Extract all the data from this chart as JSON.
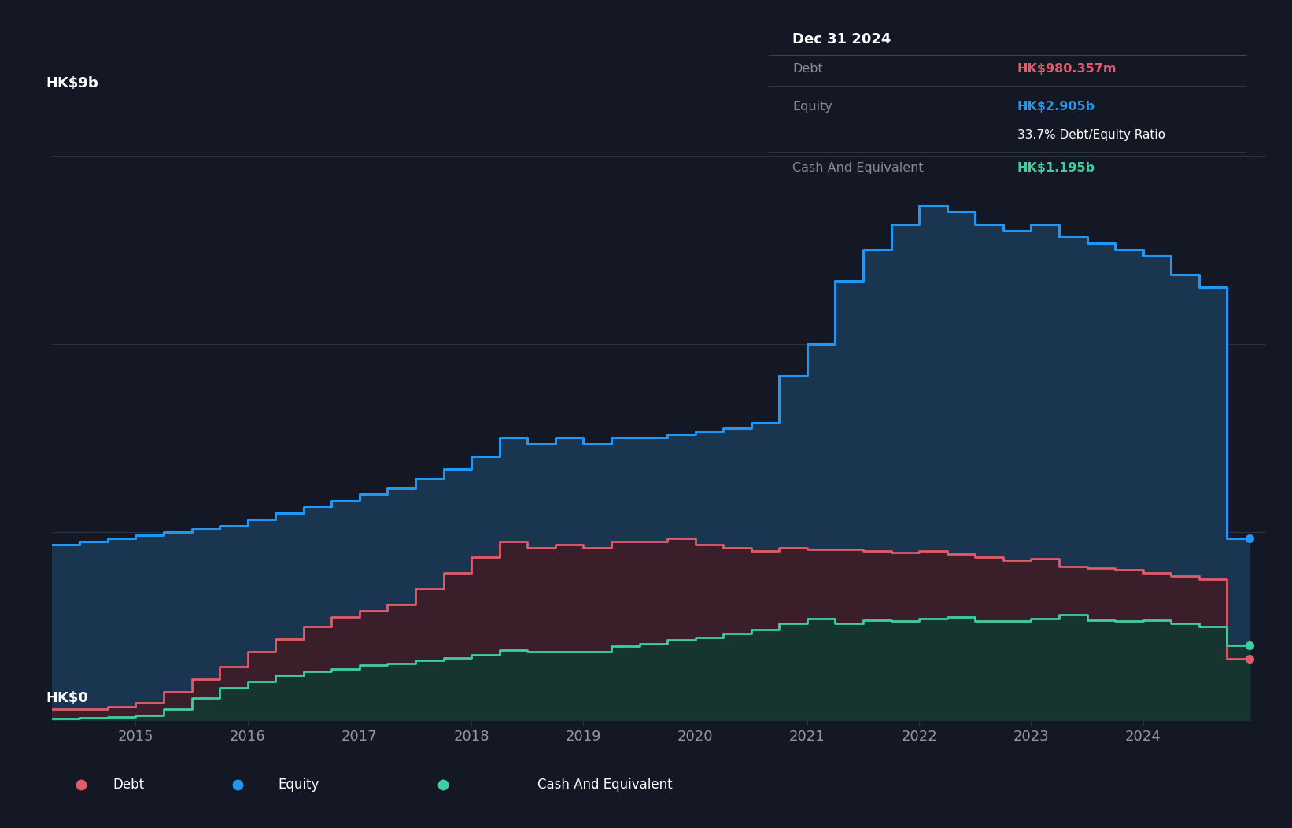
{
  "background_color": "#141824",
  "plot_bg_color": "#141824",
  "grid_color": "#2c3040",
  "axis_label_color": "#9098a0",
  "y_label": "HK$9b",
  "y_zero_label": "HK$0",
  "x_ticks": [
    2015,
    2016,
    2017,
    2018,
    2019,
    2020,
    2021,
    2022,
    2023,
    2024
  ],
  "equity_color": "#2196f3",
  "equity_fill": "#1a3550",
  "debt_color": "#e05c6a",
  "debt_fill": "#3a1f2a",
  "cash_color": "#3ecfa0",
  "cash_fill": "#163530",
  "legend_bg": "#1e222d",
  "tooltip_bg": "#050508",
  "tooltip_border": "#404050",
  "ylim_max": 9.5,
  "equity_data": {
    "dates": [
      2014.25,
      2014.5,
      2014.75,
      2015.0,
      2015.25,
      2015.5,
      2015.75,
      2016.0,
      2016.25,
      2016.5,
      2016.75,
      2017.0,
      2017.25,
      2017.5,
      2017.75,
      2018.0,
      2018.25,
      2018.5,
      2018.75,
      2019.0,
      2019.25,
      2019.5,
      2019.75,
      2020.0,
      2020.25,
      2020.5,
      2020.75,
      2021.0,
      2021.25,
      2021.5,
      2021.75,
      2022.0,
      2022.25,
      2022.5,
      2022.75,
      2023.0,
      2023.25,
      2023.5,
      2023.75,
      2024.0,
      2024.25,
      2024.5,
      2024.75,
      2024.95
    ],
    "values": [
      2.8,
      2.85,
      2.9,
      2.95,
      3.0,
      3.05,
      3.1,
      3.2,
      3.3,
      3.4,
      3.5,
      3.6,
      3.7,
      3.85,
      4.0,
      4.2,
      4.5,
      4.4,
      4.5,
      4.4,
      4.5,
      4.5,
      4.55,
      4.6,
      4.65,
      4.75,
      5.5,
      6.0,
      7.0,
      7.5,
      7.9,
      8.2,
      8.1,
      7.9,
      7.8,
      7.9,
      7.7,
      7.6,
      7.5,
      7.4,
      7.1,
      6.9,
      2.905,
      2.905
    ]
  },
  "debt_data": {
    "dates": [
      2014.25,
      2014.5,
      2014.75,
      2015.0,
      2015.25,
      2015.5,
      2015.75,
      2016.0,
      2016.25,
      2016.5,
      2016.75,
      2017.0,
      2017.25,
      2017.5,
      2017.75,
      2018.0,
      2018.25,
      2018.5,
      2018.75,
      2019.0,
      2019.25,
      2019.5,
      2019.75,
      2020.0,
      2020.25,
      2020.5,
      2020.75,
      2021.0,
      2021.25,
      2021.5,
      2021.75,
      2022.0,
      2022.25,
      2022.5,
      2022.75,
      2023.0,
      2023.25,
      2023.5,
      2023.75,
      2024.0,
      2024.25,
      2024.5,
      2024.75,
      2024.95
    ],
    "values": [
      0.18,
      0.18,
      0.22,
      0.28,
      0.45,
      0.65,
      0.85,
      1.1,
      1.3,
      1.5,
      1.65,
      1.75,
      1.85,
      2.1,
      2.35,
      2.6,
      2.85,
      2.75,
      2.8,
      2.75,
      2.85,
      2.85,
      2.9,
      2.8,
      2.75,
      2.7,
      2.75,
      2.72,
      2.72,
      2.7,
      2.68,
      2.7,
      2.65,
      2.6,
      2.55,
      2.58,
      2.45,
      2.42,
      2.4,
      2.35,
      2.3,
      2.25,
      0.9804,
      0.9804
    ]
  },
  "cash_data": {
    "dates": [
      2014.25,
      2014.5,
      2014.75,
      2015.0,
      2015.25,
      2015.5,
      2015.75,
      2016.0,
      2016.25,
      2016.5,
      2016.75,
      2017.0,
      2017.25,
      2017.5,
      2017.75,
      2018.0,
      2018.25,
      2018.5,
      2018.75,
      2019.0,
      2019.25,
      2019.5,
      2019.75,
      2020.0,
      2020.25,
      2020.5,
      2020.75,
      2021.0,
      2021.25,
      2021.5,
      2021.75,
      2022.0,
      2022.25,
      2022.5,
      2022.75,
      2023.0,
      2023.25,
      2023.5,
      2023.75,
      2024.0,
      2024.25,
      2024.5,
      2024.75,
      2024.95
    ],
    "values": [
      0.03,
      0.04,
      0.05,
      0.08,
      0.18,
      0.35,
      0.52,
      0.62,
      0.72,
      0.78,
      0.82,
      0.88,
      0.9,
      0.95,
      1.0,
      1.05,
      1.12,
      1.1,
      1.1,
      1.1,
      1.18,
      1.22,
      1.28,
      1.32,
      1.38,
      1.45,
      1.55,
      1.62,
      1.55,
      1.6,
      1.58,
      1.62,
      1.65,
      1.58,
      1.58,
      1.62,
      1.68,
      1.6,
      1.58,
      1.6,
      1.55,
      1.5,
      1.195,
      1.195
    ]
  },
  "tooltip": {
    "date": "Dec 31 2024",
    "debt_label": "Debt",
    "debt_value": "HK$980.357m",
    "equity_label": "Equity",
    "equity_value": "HK$2.905b",
    "ratio_text": "33.7% Debt/Equity Ratio",
    "cash_label": "Cash And Equivalent",
    "cash_value": "HK$1.195b"
  },
  "legend": [
    {
      "label": "Debt",
      "color": "#e05c6a"
    },
    {
      "label": "Equity",
      "color": "#2196f3"
    },
    {
      "label": "Cash And Equivalent",
      "color": "#3ecfa0"
    }
  ]
}
